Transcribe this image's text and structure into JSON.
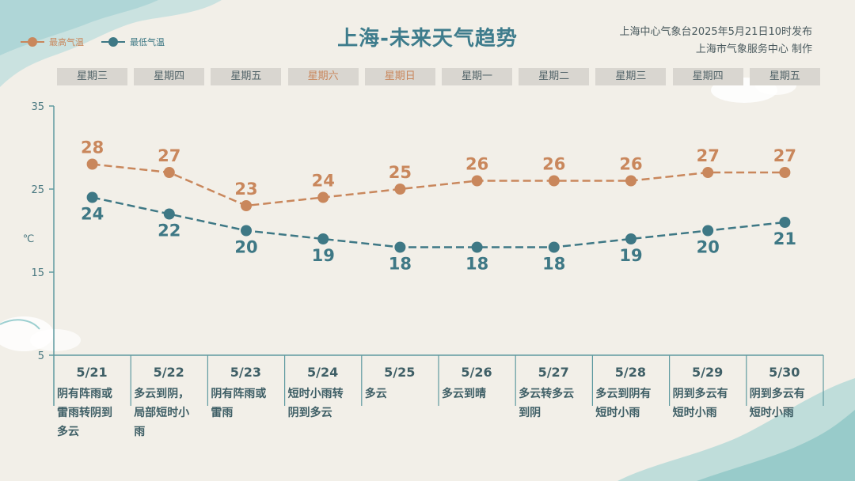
{
  "header": {
    "title": "上海-未来天气趋势",
    "source_line1": "上海中心气象台2025年5月21日10时发布",
    "source_line2": "上海市气象服务中心 制作"
  },
  "colors": {
    "high": "#c9875c",
    "low": "#3e7885",
    "axis": "#5f9aa0"
  },
  "legend": {
    "high_label": "最高气温",
    "low_label": "最低气温"
  },
  "weekdays": [
    {
      "label": "星期三",
      "weekend": false
    },
    {
      "label": "星期四",
      "weekend": false
    },
    {
      "label": "星期五",
      "weekend": false
    },
    {
      "label": "星期六",
      "weekend": true
    },
    {
      "label": "星期日",
      "weekend": true
    },
    {
      "label": "星期一",
      "weekend": false
    },
    {
      "label": "星期二",
      "weekend": false
    },
    {
      "label": "星期三",
      "weekend": false
    },
    {
      "label": "星期四",
      "weekend": false
    },
    {
      "label": "星期五",
      "weekend": false
    }
  ],
  "chart_data": {
    "type": "line",
    "categories": [
      "5/21",
      "5/22",
      "5/23",
      "5/24",
      "5/25",
      "5/26",
      "5/27",
      "5/28",
      "5/29",
      "5/30"
    ],
    "series": [
      {
        "name": "最高气温",
        "values": [
          28,
          27,
          23,
          24,
          25,
          26,
          26,
          26,
          27,
          27
        ]
      },
      {
        "name": "最低气温",
        "values": [
          24,
          22,
          20,
          19,
          18,
          18,
          18,
          19,
          20,
          21
        ]
      }
    ],
    "ylabel": "℃",
    "ylim": [
      5,
      35
    ],
    "yticks": [
      "35",
      "25",
      "15",
      "5"
    ],
    "descriptions": [
      [
        "阴有阵雨或",
        "雷雨转阴到",
        "多云"
      ],
      [
        "多云到阴，",
        "局部短时小",
        "雨"
      ],
      [
        "阴有阵雨或",
        "雷雨"
      ],
      [
        "短时小雨转",
        "阴到多云"
      ],
      [
        "多云"
      ],
      [
        "多云到晴"
      ],
      [
        "多云转多云",
        "到阴"
      ],
      [
        "多云到阴有",
        "短时小雨"
      ],
      [
        "阴到多云有",
        "短时小雨"
      ],
      [
        "阴到多云有",
        "短时小雨"
      ]
    ]
  }
}
